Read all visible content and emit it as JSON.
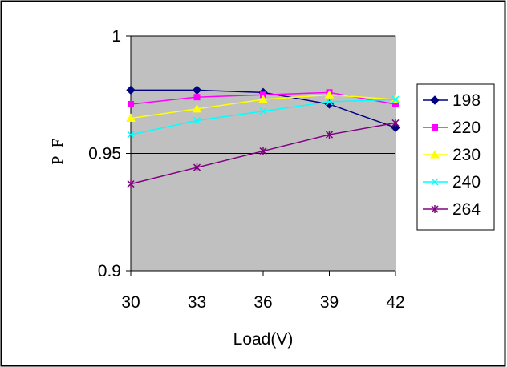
{
  "chart_data": {
    "type": "line",
    "title": "",
    "xlabel": "Load(V)",
    "ylabel": "P F",
    "x": [
      30,
      33,
      36,
      39,
      42
    ],
    "x_tick_labels": [
      "30",
      "33",
      "36",
      "39",
      "42"
    ],
    "y_tick_labels": [
      "1",
      "0.95",
      "0.9"
    ],
    "ylim": [
      0.9,
      1.0
    ],
    "yticks": [
      0.9,
      0.95,
      1.0
    ],
    "grid": "horizontal",
    "plot_background": "#c0c0c0",
    "legend_position": "right",
    "series": [
      {
        "name": "198",
        "values": [
          0.977,
          0.977,
          0.976,
          0.971,
          0.961
        ],
        "color": "#000080",
        "marker": "diamond"
      },
      {
        "name": "220",
        "values": [
          0.971,
          0.974,
          0.975,
          0.976,
          0.971
        ],
        "color": "#ff00ff",
        "marker": "square"
      },
      {
        "name": "230",
        "values": [
          0.965,
          0.969,
          0.973,
          0.975,
          0.973
        ],
        "color": "#ffff00",
        "marker": "triangle"
      },
      {
        "name": "240",
        "values": [
          0.958,
          0.964,
          0.968,
          0.972,
          0.973
        ],
        "color": "#00ffff",
        "marker": "x"
      },
      {
        "name": "264",
        "values": [
          0.937,
          0.944,
          0.951,
          0.958,
          0.963
        ],
        "color": "#800080",
        "marker": "star"
      }
    ]
  }
}
